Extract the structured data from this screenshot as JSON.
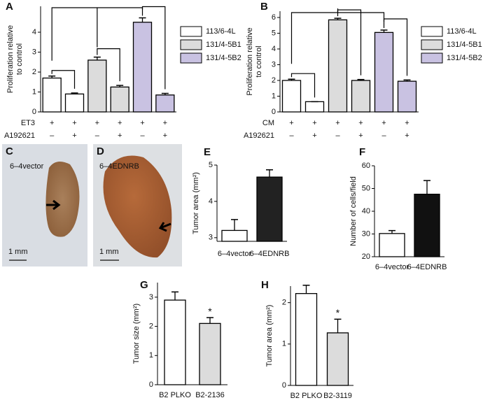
{
  "chart_data": [
    {
      "type": "bar",
      "label": "A",
      "y_label": [
        "Proliferation relative",
        "to control"
      ],
      "ylim": [
        0,
        5.3
      ],
      "yticks": [
        0,
        1,
        2,
        3,
        4
      ],
      "series": [
        {
          "name": "113/6-4L",
          "color": "#ffffff",
          "values": [
            1.7,
            0.9
          ],
          "errors": [
            0.1,
            0.05
          ]
        },
        {
          "name": "131/4-5B1",
          "color": "#dcdcdc",
          "values": [
            2.6,
            1.25
          ],
          "errors": [
            0.15,
            0.08
          ]
        },
        {
          "name": "131/4-5B2",
          "color": "#c9c2e2",
          "values": [
            4.5,
            0.85
          ],
          "errors": [
            0.22,
            0.08
          ]
        }
      ],
      "rows": [
        {
          "label": "ET3",
          "marks": [
            "+",
            "+",
            "+",
            "+",
            "+",
            "+"
          ]
        },
        {
          "label": "A192621",
          "marks": [
            "–",
            "+",
            "–",
            "+",
            "–",
            "+"
          ]
        }
      ]
    },
    {
      "type": "bar",
      "label": "B",
      "y_label": [
        "Proliferation relative",
        "to control"
      ],
      "ylim": [
        0,
        6.4
      ],
      "yticks": [
        0,
        1,
        2,
        3,
        4,
        5,
        6
      ],
      "series": [
        {
          "name": "113/6-4L",
          "color": "#ffffff",
          "values": [
            2.0,
            0.65
          ],
          "errors": [
            0.08,
            0
          ]
        },
        {
          "name": "131/4-5B1",
          "color": "#dcdcdc",
          "values": [
            5.85,
            2.0
          ],
          "errors": [
            0.1,
            0.06
          ]
        },
        {
          "name": "131/4-5B2",
          "color": "#c9c2e2",
          "values": [
            5.05,
            1.95
          ],
          "errors": [
            0.15,
            0.08
          ]
        }
      ],
      "rows": [
        {
          "label": "CM",
          "marks": [
            "+",
            "+",
            "+",
            "+",
            "+",
            "+"
          ]
        },
        {
          "label": "A192621",
          "marks": [
            "–",
            "+",
            "–",
            "+",
            "–",
            "+"
          ]
        }
      ]
    },
    {
      "type": "bar",
      "label": "E",
      "y_label": [
        "Tumor area (mm²)"
      ],
      "ylim": [
        2.9,
        5
      ],
      "yticks": [
        3,
        4,
        5
      ],
      "categories": [
        "6–4vector",
        "6–4EDNRB"
      ],
      "values": [
        3.2,
        4.67
      ],
      "errors": [
        0.3,
        0.2
      ],
      "colors": [
        "#ffffff",
        "#222222"
      ]
    },
    {
      "type": "bar",
      "label": "F",
      "y_label": [
        "Number of cells/field"
      ],
      "ylim": [
        20,
        60
      ],
      "yticks": [
        20,
        30,
        40,
        50,
        60
      ],
      "categories": [
        "6–4vector",
        "6–4EDNRB"
      ],
      "values": [
        30.2,
        47.5
      ],
      "errors": [
        1.3,
        6
      ],
      "colors": [
        "#ffffff",
        "#111111"
      ]
    },
    {
      "type": "bar",
      "label": "G",
      "y_label": [
        "Tumor size (mm²)"
      ],
      "ylim": [
        0,
        3.5
      ],
      "yticks": [
        0,
        1,
        2,
        3
      ],
      "categories": [
        "B2 PLKO",
        "B2-2136"
      ],
      "values": [
        2.9,
        2.1
      ],
      "errors": [
        0.28,
        0.2
      ],
      "colors": [
        "#ffffff",
        "#dcdcdc"
      ],
      "annotations": [
        {
          "category": "B2-2136",
          "text": "*"
        }
      ]
    },
    {
      "type": "bar",
      "label": "H",
      "y_label": [
        "Tumor area (mm²)"
      ],
      "ylim": [
        0,
        2.4
      ],
      "yticks": [
        0,
        1,
        2
      ],
      "categories": [
        "B2 PLKO",
        "B2-3119"
      ],
      "values": [
        2.22,
        1.27
      ],
      "errors": [
        0.2,
        0.33
      ],
      "colors": [
        "#ffffff",
        "#dcdcdc"
      ],
      "annotations": [
        {
          "category": "B2-3119",
          "text": "*"
        }
      ]
    }
  ],
  "figure_images": [
    {
      "label": "C",
      "caption": "6–4vector",
      "scale": "1 mm"
    },
    {
      "label": "D",
      "caption": "6–4EDNRB",
      "scale": "1 mm"
    }
  ]
}
